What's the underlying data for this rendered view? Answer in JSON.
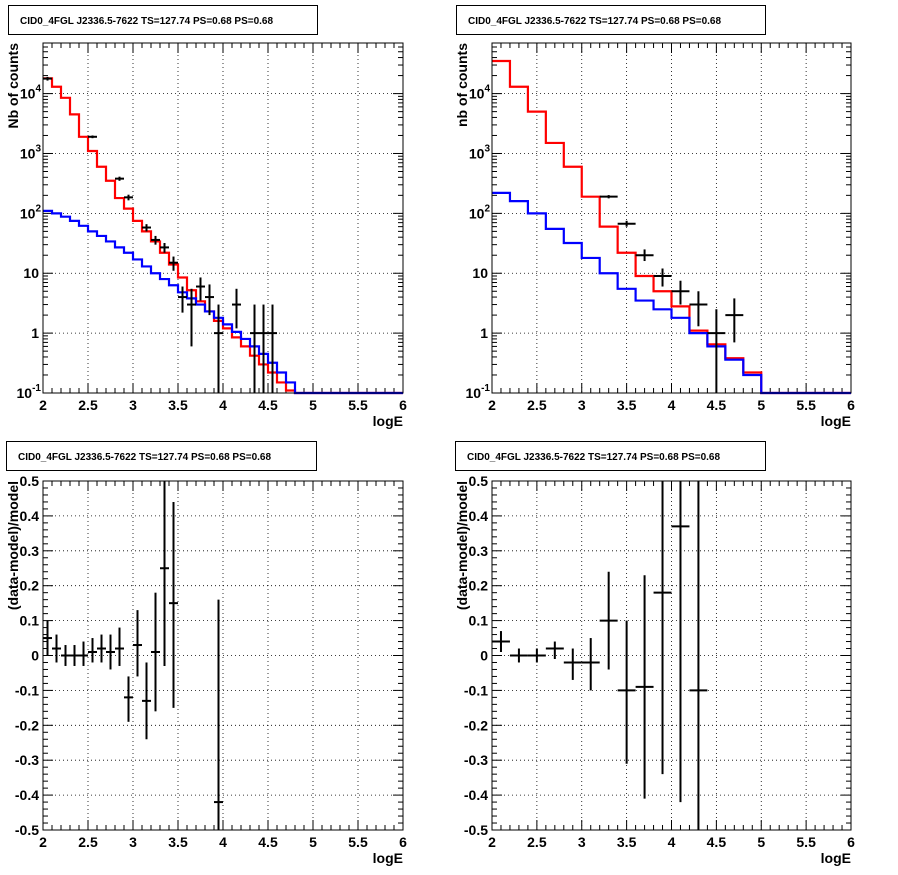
{
  "colors": {
    "model_total": "#ff0000",
    "model_bkg": "#0000ff",
    "data": "#000000"
  },
  "chart_data": [
    {
      "type": "line",
      "title": "CID0_4FGL J2336.5-7622 TS=127.74 PS=0.68 PS=0.68",
      "xlabel": "logE",
      "ylabel": "Nb of counts",
      "xlim": [
        2,
        6
      ],
      "ylim": [
        0.1,
        70000
      ],
      "log_y": true,
      "grid": true,
      "x_ticks": [
        "2",
        "2.5",
        "3",
        "3.5",
        "4",
        "4.5",
        "5",
        "5.5",
        "6"
      ],
      "y_ticks": [
        {
          "v": 0.1,
          "label": "10",
          "sup": "-1"
        },
        {
          "v": 1,
          "label": "1",
          "sup": ""
        },
        {
          "v": 10,
          "label": "10",
          "sup": ""
        },
        {
          "v": 100,
          "label": "10",
          "sup": "2"
        },
        {
          "v": 1000,
          "label": "10",
          "sup": "3"
        },
        {
          "v": 10000,
          "label": "10",
          "sup": "4"
        }
      ],
      "bin_edges": [
        2.0,
        2.1,
        2.2,
        2.3,
        2.4,
        2.5,
        2.6,
        2.7,
        2.8,
        2.9,
        3.0,
        3.1,
        3.2,
        3.3,
        3.4,
        3.5,
        3.6,
        3.7,
        3.8,
        3.9,
        4.0,
        4.1,
        4.2,
        4.3,
        4.4,
        4.5,
        4.6,
        4.7,
        4.8,
        4.9,
        5.0,
        5.1,
        5.2,
        5.3,
        5.4,
        5.5,
        5.6,
        5.7,
        5.8,
        5.9,
        6.0
      ],
      "series": [
        {
          "role": "model_total",
          "values": [
            18000,
            13000,
            8500,
            4500,
            1900,
            1100,
            600,
            350,
            180,
            120,
            75,
            50,
            34,
            22,
            14,
            8.5,
            5.2,
            3.4,
            2.3,
            1.6,
            1.2,
            0.85,
            0.6,
            0.42,
            0.3,
            0.22,
            0.15,
            0.11,
            0.1,
            0.1,
            0.1,
            0.1,
            0.1,
            0.1,
            0.1,
            0.1,
            0.1,
            0.1,
            0.1,
            0.1
          ]
        },
        {
          "role": "model_bkg",
          "values": [
            110,
            100,
            88,
            75,
            62,
            50,
            42,
            34,
            27,
            22,
            17,
            13,
            10,
            8,
            6.3,
            4.8,
            3.8,
            3.0,
            2.3,
            1.8,
            1.4,
            1.05,
            0.8,
            0.6,
            0.45,
            0.32,
            0.22,
            0.15,
            0.1,
            0.1,
            0.1,
            0.1,
            0.1,
            0.1,
            0.1,
            0.1,
            0.1,
            0.1,
            0.1,
            0.1
          ]
        },
        {
          "role": "data",
          "points": [
            {
              "x": 2.05,
              "y": 17800,
              "lo": 16500,
              "hi": 19000
            },
            {
              "x": 2.55,
              "y": 1900,
              "lo": 1800,
              "hi": 2000
            },
            {
              "x": 2.85,
              "y": 380,
              "lo": 350,
              "hi": 410
            },
            {
              "x": 2.95,
              "y": 185,
              "lo": 165,
              "hi": 205
            },
            {
              "x": 3.15,
              "y": 58,
              "lo": 50,
              "hi": 66
            },
            {
              "x": 3.25,
              "y": 36,
              "lo": 30,
              "hi": 42
            },
            {
              "x": 3.35,
              "y": 27,
              "lo": 22,
              "hi": 32
            },
            {
              "x": 3.45,
              "y": 15,
              "lo": 11,
              "hi": 19
            },
            {
              "x": 3.55,
              "y": 4,
              "lo": 2.2,
              "hi": 6
            },
            {
              "x": 3.65,
              "y": 3,
              "lo": 0.6,
              "hi": 5.5
            },
            {
              "x": 3.75,
              "y": 6,
              "lo": 3.5,
              "hi": 8.5
            },
            {
              "x": 3.85,
              "y": 4,
              "lo": 2,
              "hi": 6.5
            },
            {
              "x": 3.95,
              "y": 1,
              "lo": 0.1,
              "hi": 3
            },
            {
              "x": 4.15,
              "y": 3,
              "lo": 1.2,
              "hi": 5.5
            },
            {
              "x": 4.35,
              "y": 1,
              "lo": 0.1,
              "hi": 3
            },
            {
              "x": 4.45,
              "y": 1,
              "lo": 0.1,
              "hi": 3
            },
            {
              "x": 4.55,
              "y": 1,
              "lo": 0.1,
              "hi": 3
            }
          ]
        }
      ]
    },
    {
      "type": "line",
      "title": "CID0_4FGL J2336.5-7622 TS=127.74 PS=0.68 PS=0.68",
      "xlabel": "logE",
      "ylabel": "nb of counts",
      "xlim": [
        2,
        6
      ],
      "ylim": [
        0.1,
        70000
      ],
      "log_y": true,
      "grid": true,
      "x_ticks": [
        "2",
        "2.5",
        "3",
        "3.5",
        "4",
        "4.5",
        "5",
        "5.5",
        "6"
      ],
      "y_ticks": [
        {
          "v": 0.1,
          "label": "10",
          "sup": "-1"
        },
        {
          "v": 1,
          "label": "1",
          "sup": ""
        },
        {
          "v": 10,
          "label": "10",
          "sup": ""
        },
        {
          "v": 100,
          "label": "10",
          "sup": "2"
        },
        {
          "v": 1000,
          "label": "10",
          "sup": "3"
        },
        {
          "v": 10000,
          "label": "10",
          "sup": "4"
        }
      ],
      "bin_edges": [
        2.0,
        2.2,
        2.4,
        2.6,
        2.8,
        3.0,
        3.2,
        3.4,
        3.6,
        3.8,
        4.0,
        4.2,
        4.4,
        4.6,
        4.8,
        5.0,
        5.2,
        5.4,
        5.6,
        5.8,
        6.0
      ],
      "series": [
        {
          "role": "model_total",
          "values": [
            35000,
            13000,
            5000,
            1500,
            600,
            190,
            60,
            22,
            9,
            5,
            2.8,
            1.1,
            0.65,
            0.38,
            0.22,
            0.1,
            0.1,
            0.1,
            0.1,
            0.1
          ]
        },
        {
          "role": "model_bkg",
          "values": [
            220,
            160,
            100,
            55,
            32,
            18,
            10,
            5.5,
            3.5,
            2.5,
            1.8,
            1.0,
            0.6,
            0.36,
            0.2,
            0.1,
            0.1,
            0.1,
            0.1,
            0.1
          ]
        },
        {
          "role": "data",
          "points": [
            {
              "x": 3.3,
              "y": 190,
              "lo": 178,
              "hi": 202
            },
            {
              "x": 3.5,
              "y": 67,
              "lo": 60,
              "hi": 75
            },
            {
              "x": 3.7,
              "y": 20,
              "lo": 16,
              "hi": 25
            },
            {
              "x": 3.9,
              "y": 9,
              "lo": 6,
              "hi": 12
            },
            {
              "x": 4.1,
              "y": 5,
              "lo": 3,
              "hi": 7.5
            },
            {
              "x": 4.3,
              "y": 3,
              "lo": 1.3,
              "hi": 5
            },
            {
              "x": 4.5,
              "y": 1,
              "lo": 0.1,
              "hi": 2.5
            },
            {
              "x": 4.7,
              "y": 2,
              "lo": 0.7,
              "hi": 3.8
            }
          ]
        }
      ]
    },
    {
      "type": "scatter",
      "title": "CID0_4FGL J2336.5-7622 TS=127.74 PS=0.68 PS=0.68",
      "xlabel": "logE",
      "ylabel": "(data-model)/model",
      "xlim": [
        2,
        6
      ],
      "ylim": [
        -0.5,
        0.5
      ],
      "grid": true,
      "x_ticks": [
        "2",
        "2.5",
        "3",
        "3.5",
        "4",
        "4.5",
        "5",
        "5.5",
        "6"
      ],
      "y_ticks": [
        {
          "v": -0.5,
          "label": "-0.5"
        },
        {
          "v": -0.4,
          "label": "-0.4"
        },
        {
          "v": -0.3,
          "label": "-0.3"
        },
        {
          "v": -0.2,
          "label": "-0.2"
        },
        {
          "v": -0.1,
          "label": "-0.1"
        },
        {
          "v": 0,
          "label": "0"
        },
        {
          "v": 0.1,
          "label": "0.1"
        },
        {
          "v": 0.2,
          "label": "0.2"
        },
        {
          "v": 0.3,
          "label": "0.3"
        },
        {
          "v": 0.4,
          "label": "0.4"
        },
        {
          "v": 0.5,
          "label": "0.5"
        }
      ],
      "half_width": 0.05,
      "points": [
        {
          "x": 2.05,
          "y": 0.05,
          "lo": 0.0,
          "hi": 0.1
        },
        {
          "x": 2.15,
          "y": 0.02,
          "lo": -0.02,
          "hi": 0.06
        },
        {
          "x": 2.25,
          "y": 0.0,
          "lo": -0.03,
          "hi": 0.03
        },
        {
          "x": 2.35,
          "y": 0.0,
          "lo": -0.03,
          "hi": 0.03
        },
        {
          "x": 2.45,
          "y": 0.0,
          "lo": -0.03,
          "hi": 0.04
        },
        {
          "x": 2.55,
          "y": 0.01,
          "lo": -0.02,
          "hi": 0.05
        },
        {
          "x": 2.65,
          "y": 0.02,
          "lo": -0.02,
          "hi": 0.06
        },
        {
          "x": 2.75,
          "y": 0.01,
          "lo": -0.04,
          "hi": 0.06
        },
        {
          "x": 2.85,
          "y": 0.02,
          "lo": -0.03,
          "hi": 0.08
        },
        {
          "x": 2.95,
          "y": -0.12,
          "lo": -0.19,
          "hi": -0.06
        },
        {
          "x": 3.05,
          "y": 0.03,
          "lo": -0.06,
          "hi": 0.13
        },
        {
          "x": 3.15,
          "y": -0.13,
          "lo": -0.24,
          "hi": -0.02
        },
        {
          "x": 3.25,
          "y": 0.01,
          "lo": -0.16,
          "hi": 0.18
        },
        {
          "x": 3.35,
          "y": 0.25,
          "lo": -0.03,
          "hi": 0.5
        },
        {
          "x": 3.45,
          "y": 0.15,
          "lo": -0.15,
          "hi": 0.44
        },
        {
          "x": 3.95,
          "y": -0.42,
          "lo": -0.5,
          "hi": 0.16
        }
      ]
    },
    {
      "type": "scatter",
      "title": "CID0_4FGL J2336.5-7622 TS=127.74 PS=0.68 PS=0.68",
      "xlabel": "logE",
      "ylabel": "(data-model)/model",
      "xlim": [
        2,
        6
      ],
      "ylim": [
        -0.5,
        0.5
      ],
      "grid": true,
      "x_ticks": [
        "2",
        "2.5",
        "3",
        "3.5",
        "4",
        "4.5",
        "5",
        "5.5",
        "6"
      ],
      "y_ticks": [
        {
          "v": -0.5,
          "label": "-0.5"
        },
        {
          "v": -0.4,
          "label": "-0.4"
        },
        {
          "v": -0.3,
          "label": "-0.3"
        },
        {
          "v": -0.2,
          "label": "-0.2"
        },
        {
          "v": -0.1,
          "label": "-0.1"
        },
        {
          "v": 0,
          "label": "0"
        },
        {
          "v": 0.1,
          "label": "0.1"
        },
        {
          "v": 0.2,
          "label": "0.2"
        },
        {
          "v": 0.3,
          "label": "0.3"
        },
        {
          "v": 0.4,
          "label": "0.4"
        },
        {
          "v": 0.5,
          "label": "0.5"
        }
      ],
      "half_width": 0.1,
      "points": [
        {
          "x": 2.1,
          "y": 0.04,
          "lo": 0.01,
          "hi": 0.07
        },
        {
          "x": 2.3,
          "y": 0.0,
          "lo": -0.02,
          "hi": 0.02
        },
        {
          "x": 2.5,
          "y": 0.0,
          "lo": -0.02,
          "hi": 0.02
        },
        {
          "x": 2.7,
          "y": 0.02,
          "lo": -0.01,
          "hi": 0.04
        },
        {
          "x": 2.9,
          "y": -0.02,
          "lo": -0.07,
          "hi": 0.02
        },
        {
          "x": 3.1,
          "y": -0.02,
          "lo": -0.1,
          "hi": 0.05
        },
        {
          "x": 3.3,
          "y": 0.1,
          "lo": -0.04,
          "hi": 0.24
        },
        {
          "x": 3.5,
          "y": -0.1,
          "lo": -0.31,
          "hi": 0.1
        },
        {
          "x": 3.7,
          "y": -0.09,
          "lo": -0.41,
          "hi": 0.23
        },
        {
          "x": 3.9,
          "y": 0.18,
          "lo": -0.34,
          "hi": 0.5
        },
        {
          "x": 4.1,
          "y": 0.37,
          "lo": -0.42,
          "hi": 0.5
        },
        {
          "x": 4.3,
          "y": -0.1,
          "lo": -0.5,
          "hi": 0.5
        }
      ]
    }
  ]
}
